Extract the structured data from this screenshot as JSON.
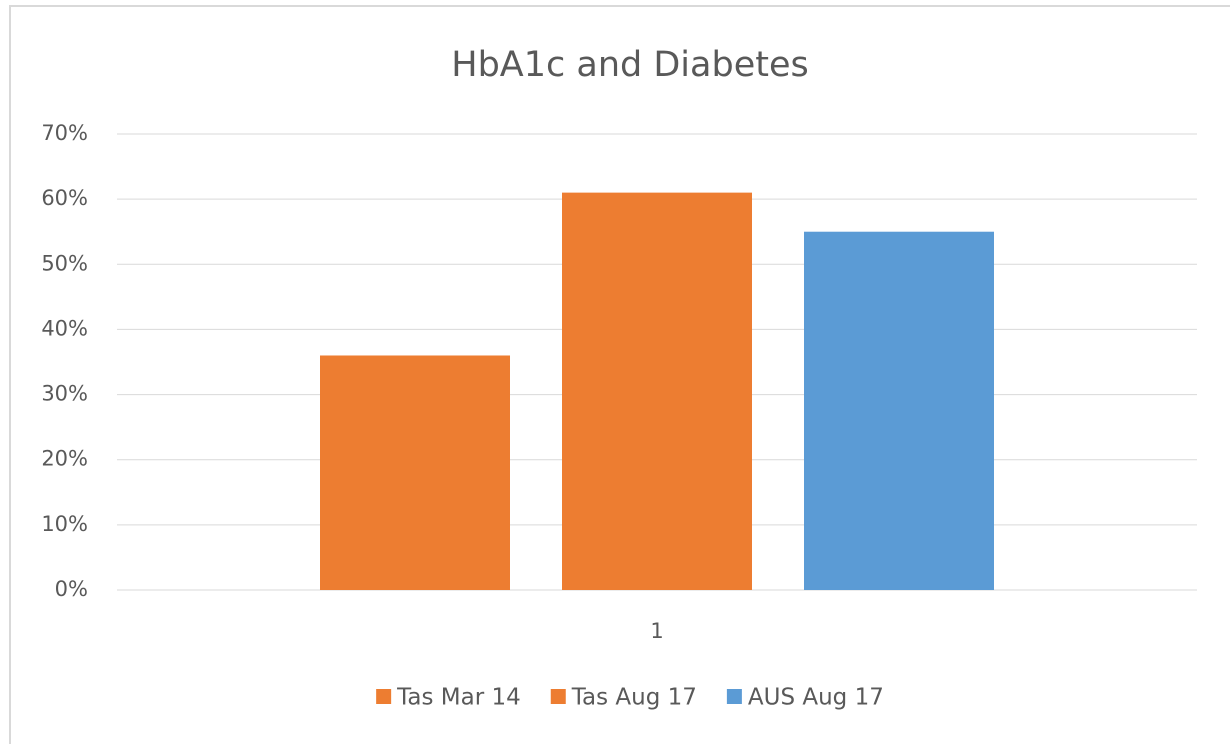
{
  "chart_data": {
    "type": "bar",
    "title": "HbA1c and Diabetes",
    "categories": [
      "1"
    ],
    "series": [
      {
        "name": "Tas Mar 14",
        "color": "#ed7d31",
        "values": [
          36
        ]
      },
      {
        "name": "Tas Aug 17",
        "color": "#ed7d31",
        "values": [
          61
        ]
      },
      {
        "name": "AUS Aug 17",
        "color": "#5b9bd5",
        "values": [
          55
        ]
      }
    ],
    "ylim": [
      0,
      70
    ],
    "yticks": [
      {
        "value": 0,
        "label": "0%"
      },
      {
        "value": 10,
        "label": "10%"
      },
      {
        "value": 20,
        "label": "20%"
      },
      {
        "value": 30,
        "label": "30%"
      },
      {
        "value": 40,
        "label": "40%"
      },
      {
        "value": 50,
        "label": "50%"
      },
      {
        "value": 60,
        "label": "60%"
      },
      {
        "value": 70,
        "label": "70%"
      }
    ],
    "grid": true,
    "legend": "bottom"
  }
}
